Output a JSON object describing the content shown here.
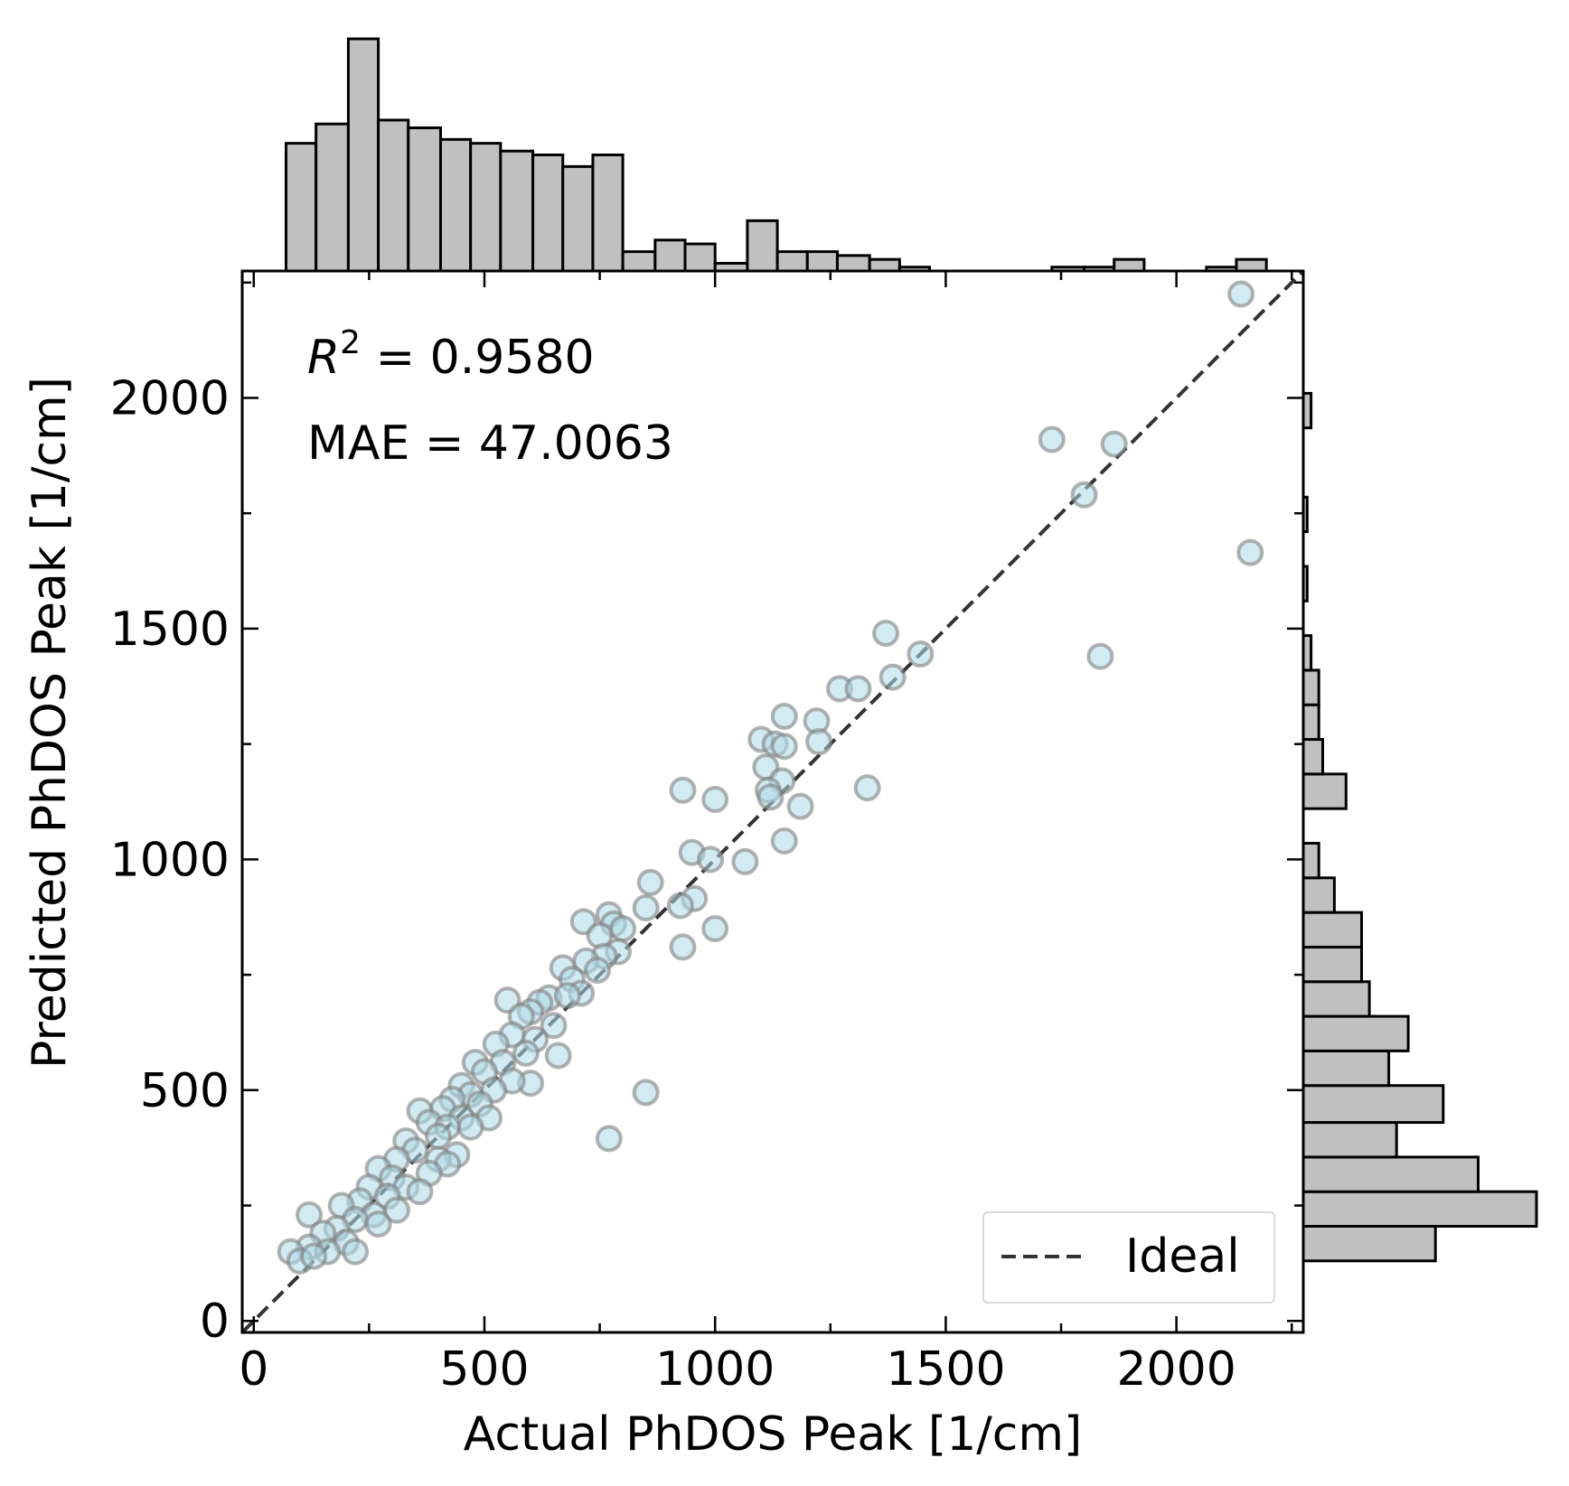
{
  "chart_data": {
    "type": "scatter",
    "xlabel": "Actual PhDOS Peak [1/cm]",
    "ylabel": "Predicted PhDOS Peak [1/cm]",
    "xlim": [
      -25,
      2275
    ],
    "ylim": [
      -25,
      2275
    ],
    "xticks": [
      0,
      500,
      1000,
      1500,
      2000
    ],
    "yticks": [
      0,
      500,
      1000,
      1500,
      2000
    ],
    "xtick_labels": [
      "0",
      "500",
      "1000",
      "1500",
      "2000"
    ],
    "ytick_labels": [
      "0",
      "500",
      "1000",
      "1500",
      "2000"
    ],
    "annotations": {
      "r2_prefix": "R",
      "r2_sup": "2",
      "r2_value": " = 0.9580",
      "mae": "MAE = 47.0063"
    },
    "legend": {
      "label": "Ideal",
      "placement": "lower-right"
    },
    "grid": false,
    "colors": {
      "marker_fill": "#add8e6",
      "marker_edge": "#808080",
      "hist_fill": "#c0c0c0",
      "ideal_line": "#333333"
    },
    "points": [
      [
        2140,
        2225
      ],
      [
        1730,
        1910
      ],
      [
        1865,
        1900
      ],
      [
        1800,
        1790
      ],
      [
        2160,
        1665
      ],
      [
        1835,
        1440
      ],
      [
        1370,
        1490
      ],
      [
        1445,
        1445
      ],
      [
        1385,
        1395
      ],
      [
        1270,
        1370
      ],
      [
        1310,
        1370
      ],
      [
        1150,
        1310
      ],
      [
        1220,
        1300
      ],
      [
        1100,
        1260
      ],
      [
        1225,
        1255
      ],
      [
        1130,
        1250
      ],
      [
        1150,
        1245
      ],
      [
        1110,
        1200
      ],
      [
        1145,
        1170
      ],
      [
        1115,
        1150
      ],
      [
        1120,
        1135
      ],
      [
        1330,
        1155
      ],
      [
        930,
        1150
      ],
      [
        1000,
        1130
      ],
      [
        1185,
        1115
      ],
      [
        1150,
        1040
      ],
      [
        950,
        1015
      ],
      [
        990,
        1000
      ],
      [
        1065,
        995
      ],
      [
        860,
        950
      ],
      [
        955,
        915
      ],
      [
        925,
        900
      ],
      [
        850,
        895
      ],
      [
        770,
        880
      ],
      [
        715,
        865
      ],
      [
        780,
        860
      ],
      [
        800,
        850
      ],
      [
        1000,
        850
      ],
      [
        750,
        835
      ],
      [
        930,
        810
      ],
      [
        790,
        800
      ],
      [
        760,
        790
      ],
      [
        720,
        780
      ],
      [
        670,
        765
      ],
      [
        745,
        760
      ],
      [
        690,
        740
      ],
      [
        710,
        710
      ],
      [
        640,
        700
      ],
      [
        550,
        695
      ],
      [
        680,
        705
      ],
      [
        620,
        690
      ],
      [
        600,
        670
      ],
      [
        580,
        660
      ],
      [
        650,
        640
      ],
      [
        560,
        620
      ],
      [
        610,
        610
      ],
      [
        525,
        600
      ],
      [
        590,
        580
      ],
      [
        660,
        575
      ],
      [
        540,
        560
      ],
      [
        480,
        560
      ],
      [
        500,
        540
      ],
      [
        600,
        515
      ],
      [
        560,
        520
      ],
      [
        450,
        510
      ],
      [
        520,
        500
      ],
      [
        850,
        495
      ],
      [
        470,
        490
      ],
      [
        430,
        480
      ],
      [
        490,
        470
      ],
      [
        410,
        460
      ],
      [
        360,
        455
      ],
      [
        450,
        440
      ],
      [
        380,
        430
      ],
      [
        420,
        420
      ],
      [
        510,
        440
      ],
      [
        470,
        420
      ],
      [
        400,
        400
      ],
      [
        330,
        390
      ],
      [
        350,
        370
      ],
      [
        440,
        360
      ],
      [
        310,
        350
      ],
      [
        400,
        350
      ],
      [
        420,
        340
      ],
      [
        270,
        330
      ],
      [
        380,
        320
      ],
      [
        770,
        395
      ],
      [
        300,
        310
      ],
      [
        330,
        290
      ],
      [
        250,
        290
      ],
      [
        360,
        280
      ],
      [
        290,
        270
      ],
      [
        230,
        260
      ],
      [
        190,
        250
      ],
      [
        310,
        240
      ],
      [
        260,
        230
      ],
      [
        220,
        220
      ],
      [
        270,
        210
      ],
      [
        180,
        200
      ],
      [
        120,
        230
      ],
      [
        150,
        190
      ],
      [
        200,
        170
      ],
      [
        120,
        160
      ],
      [
        160,
        150
      ],
      [
        220,
        150
      ],
      [
        80,
        150
      ],
      [
        100,
        130
      ],
      [
        130,
        140
      ]
    ],
    "top_histogram": {
      "bin_edges": [
        70,
        135,
        205,
        270,
        335,
        405,
        470,
        535,
        605,
        670,
        735,
        800,
        870,
        935,
        1000,
        1070,
        1135,
        1200,
        1265,
        1335,
        1400,
        1465,
        1535,
        1600,
        1665,
        1730,
        1800,
        1865,
        1930,
        2000,
        2065,
        2130,
        2195
      ],
      "counts": [
        33,
        38,
        60,
        39,
        37,
        34,
        33,
        31,
        30,
        27,
        30,
        5,
        8,
        7,
        2,
        13,
        5,
        5,
        4,
        3,
        1,
        0,
        0,
        0,
        0,
        1,
        1,
        3,
        0,
        0,
        1,
        3
      ]
    },
    "right_histogram": {
      "bin_edges": [
        130,
        205,
        280,
        355,
        430,
        510,
        585,
        660,
        735,
        810,
        885,
        960,
        1035,
        1110,
        1185,
        1260,
        1335,
        1410,
        1485,
        1560,
        1635,
        1710,
        1785,
        1860,
        1935,
        2010,
        2085,
        2160,
        2235
      ],
      "counts": [
        34,
        60,
        45,
        24,
        36,
        22,
        27,
        17,
        15,
        15,
        8,
        4,
        0,
        11,
        5,
        4,
        4,
        2,
        0,
        1,
        0,
        1,
        0,
        0,
        2,
        0,
        0,
        0
      ]
    }
  }
}
